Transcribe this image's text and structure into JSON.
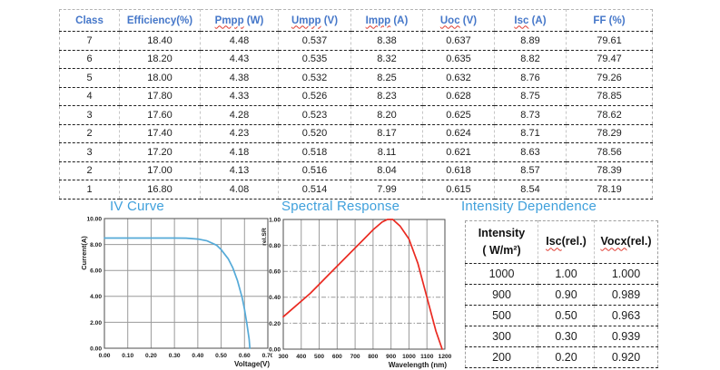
{
  "colors": {
    "header_blue": "#4577c9",
    "title_blue": "#3fa0dc",
    "iv_curve_blue": "#55aad8",
    "spectral_red": "#ea2a21",
    "squiggle_red": "#e03b30",
    "grid_gray": "#9a9a9a",
    "data_text": "#1d1d1d"
  },
  "main_table": {
    "headers": [
      {
        "word": "Class",
        "rest": "",
        "squiggle": false
      },
      {
        "word": "Efficiency(%)",
        "rest": "",
        "squiggle": false
      },
      {
        "word": "Pmpp",
        "rest": " (W)",
        "squiggle": true
      },
      {
        "word": "Umpp",
        "rest": " (V)",
        "squiggle": true
      },
      {
        "word": "Impp",
        "rest": " (A)",
        "squiggle": true
      },
      {
        "word": "Uoc",
        "rest": " (V)",
        "squiggle": true
      },
      {
        "word": "Isc",
        "rest": " (A)",
        "squiggle": true
      },
      {
        "word": "FF (%)",
        "rest": "",
        "squiggle": false
      }
    ],
    "rows": [
      [
        "7",
        "18.40",
        "4.48",
        "0.537",
        "8.38",
        "0.637",
        "8.89",
        "79.61"
      ],
      [
        "6",
        "18.20",
        "4.43",
        "0.535",
        "8.32",
        "0.635",
        "8.82",
        "79.47"
      ],
      [
        "5",
        "18.00",
        "4.38",
        "0.532",
        "8.25",
        "0.632",
        "8.76",
        "79.26"
      ],
      [
        "4",
        "17.80",
        "4.33",
        "0.526",
        "8.23",
        "0.628",
        "8.75",
        "78.85"
      ],
      [
        "3",
        "17.60",
        "4.28",
        "0.523",
        "8.20",
        "0.625",
        "8.73",
        "78.62"
      ],
      [
        "2",
        "17.40",
        "4.23",
        "0.520",
        "8.17",
        "0.624",
        "8.71",
        "78.29"
      ],
      [
        "3",
        "17.20",
        "4.18",
        "0.518",
        "8.11",
        "0.621",
        "8.63",
        "78.56"
      ],
      [
        "2",
        "17.00",
        "4.13",
        "0.516",
        "8.04",
        "0.618",
        "8.57",
        "78.39"
      ],
      [
        "1",
        "16.80",
        "4.08",
        "0.514",
        "7.99",
        "0.615",
        "8.54",
        "78.19"
      ]
    ]
  },
  "sections": {
    "iv_title": "IV Curve",
    "spectral_title": "Spectral Response",
    "intensity_title": "Intensity Dependence"
  },
  "intensity_table": {
    "headers": [
      {
        "lines": [
          "Intensity",
          "( W/m²)"
        ],
        "squiggle": false
      },
      {
        "word": "Isc",
        "rest": "(rel.)",
        "squiggle": true
      },
      {
        "word": "Vocx",
        "rest": "(rel.)",
        "squiggle": true
      }
    ],
    "rows": [
      [
        "1000",
        "1.00",
        "1.000"
      ],
      [
        "900",
        "0.90",
        "0.989"
      ],
      [
        "500",
        "0.50",
        "0.963"
      ],
      [
        "300",
        "0.30",
        "0.939"
      ],
      [
        "200",
        "0.20",
        "0.920"
      ]
    ]
  },
  "chart_data": [
    {
      "type": "line",
      "title": "IV Curve",
      "xlabel": "Voltage(V)",
      "ylabel": "Current(A)",
      "xlim": [
        0,
        0.7
      ],
      "ylim": [
        0,
        10
      ],
      "xticks": [
        "0.00",
        "0.10",
        "0.20",
        "0.30",
        "0.40",
        "0.50",
        "0.60",
        "0.70"
      ],
      "yticks": [
        "0.00",
        "2.00",
        "4.00",
        "6.00",
        "8.00",
        "10.00"
      ],
      "grid_v_style": "solid",
      "grid_h_style": "solid",
      "line_color": "#55aad8",
      "points": [
        [
          0,
          8.5
        ],
        [
          0.1,
          8.5
        ],
        [
          0.2,
          8.5
        ],
        [
          0.3,
          8.5
        ],
        [
          0.35,
          8.49
        ],
        [
          0.4,
          8.42
        ],
        [
          0.44,
          8.28
        ],
        [
          0.48,
          7.95
        ],
        [
          0.5,
          7.6
        ],
        [
          0.53,
          6.9
        ],
        [
          0.55,
          6.2
        ],
        [
          0.57,
          5.2
        ],
        [
          0.59,
          3.9
        ],
        [
          0.6,
          3.0
        ],
        [
          0.61,
          1.9
        ],
        [
          0.62,
          0.7
        ],
        [
          0.623,
          0
        ]
      ]
    },
    {
      "type": "line",
      "title": "Spectral Response",
      "xlabel": "Wavelength (nm)",
      "ylabel": "rel.SR",
      "xlim": [
        300,
        1200
      ],
      "ylim": [
        0,
        1
      ],
      "xticks": [
        "300",
        "400",
        "500",
        "600",
        "700",
        "800",
        "900",
        "1000",
        "1100",
        "1200"
      ],
      "yticks": [
        "0.00",
        "0.20",
        "0.40",
        "0.60",
        "0.80",
        "1.00"
      ],
      "grid_v_style": "solid",
      "grid_h_style": "dashdot",
      "line_color": "#ea2a21",
      "points": [
        [
          300,
          0.25
        ],
        [
          350,
          0.31
        ],
        [
          400,
          0.37
        ],
        [
          450,
          0.43
        ],
        [
          500,
          0.5
        ],
        [
          550,
          0.57
        ],
        [
          600,
          0.64
        ],
        [
          650,
          0.71
        ],
        [
          700,
          0.78
        ],
        [
          750,
          0.85
        ],
        [
          800,
          0.92
        ],
        [
          850,
          0.98
        ],
        [
          880,
          1.0
        ],
        [
          910,
          1.0
        ],
        [
          950,
          0.95
        ],
        [
          1000,
          0.85
        ],
        [
          1050,
          0.66
        ],
        [
          1100,
          0.4
        ],
        [
          1150,
          0.14
        ],
        [
          1185,
          0.0
        ]
      ]
    }
  ]
}
